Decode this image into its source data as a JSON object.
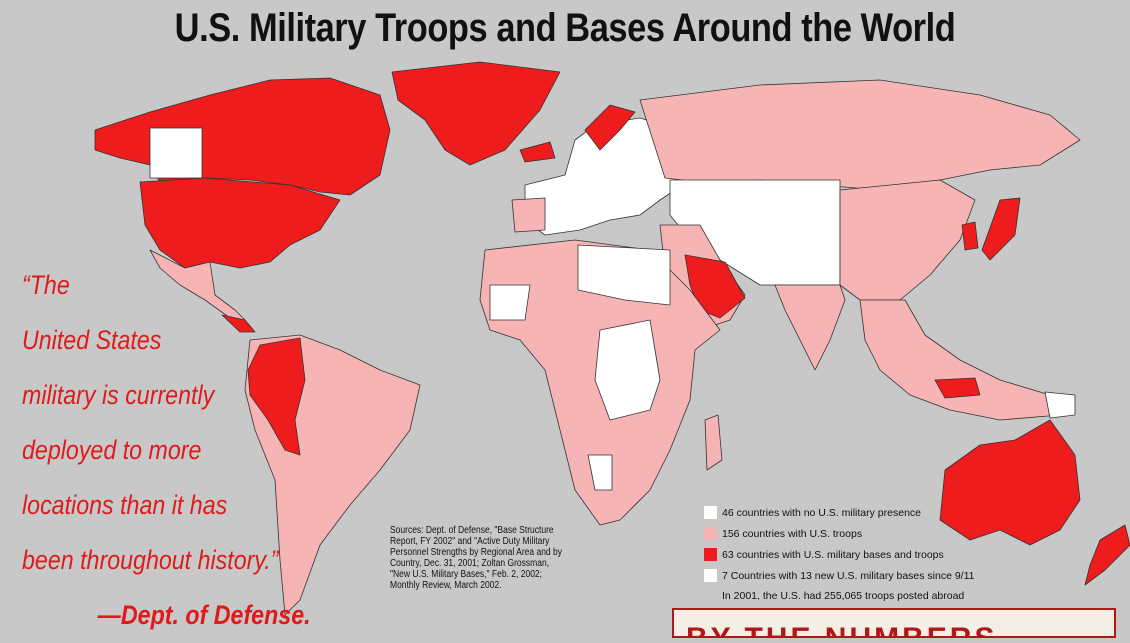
{
  "title": "U.S. Military Troops and Bases Around the World",
  "quote": {
    "lines": [
      "“The",
      "United States",
      "military is currently",
      "deployed to more",
      "locations than it has",
      "been throughout history.”"
    ],
    "attribution": "—Dept. of Defense."
  },
  "sources": "Sources: Dept. of Defense, \"Base Structure Report, FY 2002\" and \"Active Duty Military Personnel Strengths by Regional Area and by Country, Dec. 31, 2001; Zoltan Grossman, \"New U.S. Military Bases,\" Feb. 2, 2002; Monthly Review, March 2002.",
  "legend": {
    "items": [
      {
        "label": "46 countries with no U.S. military presence",
        "color": "#ffffff"
      },
      {
        "label": "156 countries with U.S. troops",
        "color": "#f7b4b4"
      },
      {
        "label": "63 countries with U.S. military bases and troops",
        "color": "#ee1c1c"
      },
      {
        "label": "7 Countries with 13 new U.S. military bases since 9/11",
        "color": "#ffffff"
      }
    ],
    "note": "In 2001, the U.S. had 255,065 troops posted abroad"
  },
  "colors": {
    "ocean": "#c8c8c8",
    "none": "#ffffff",
    "troops": "#f7b4b4",
    "bases": "#ee1c1c",
    "quote": "#e01a1a",
    "border": "#222222"
  },
  "banner": "BY THE NUMBERS"
}
